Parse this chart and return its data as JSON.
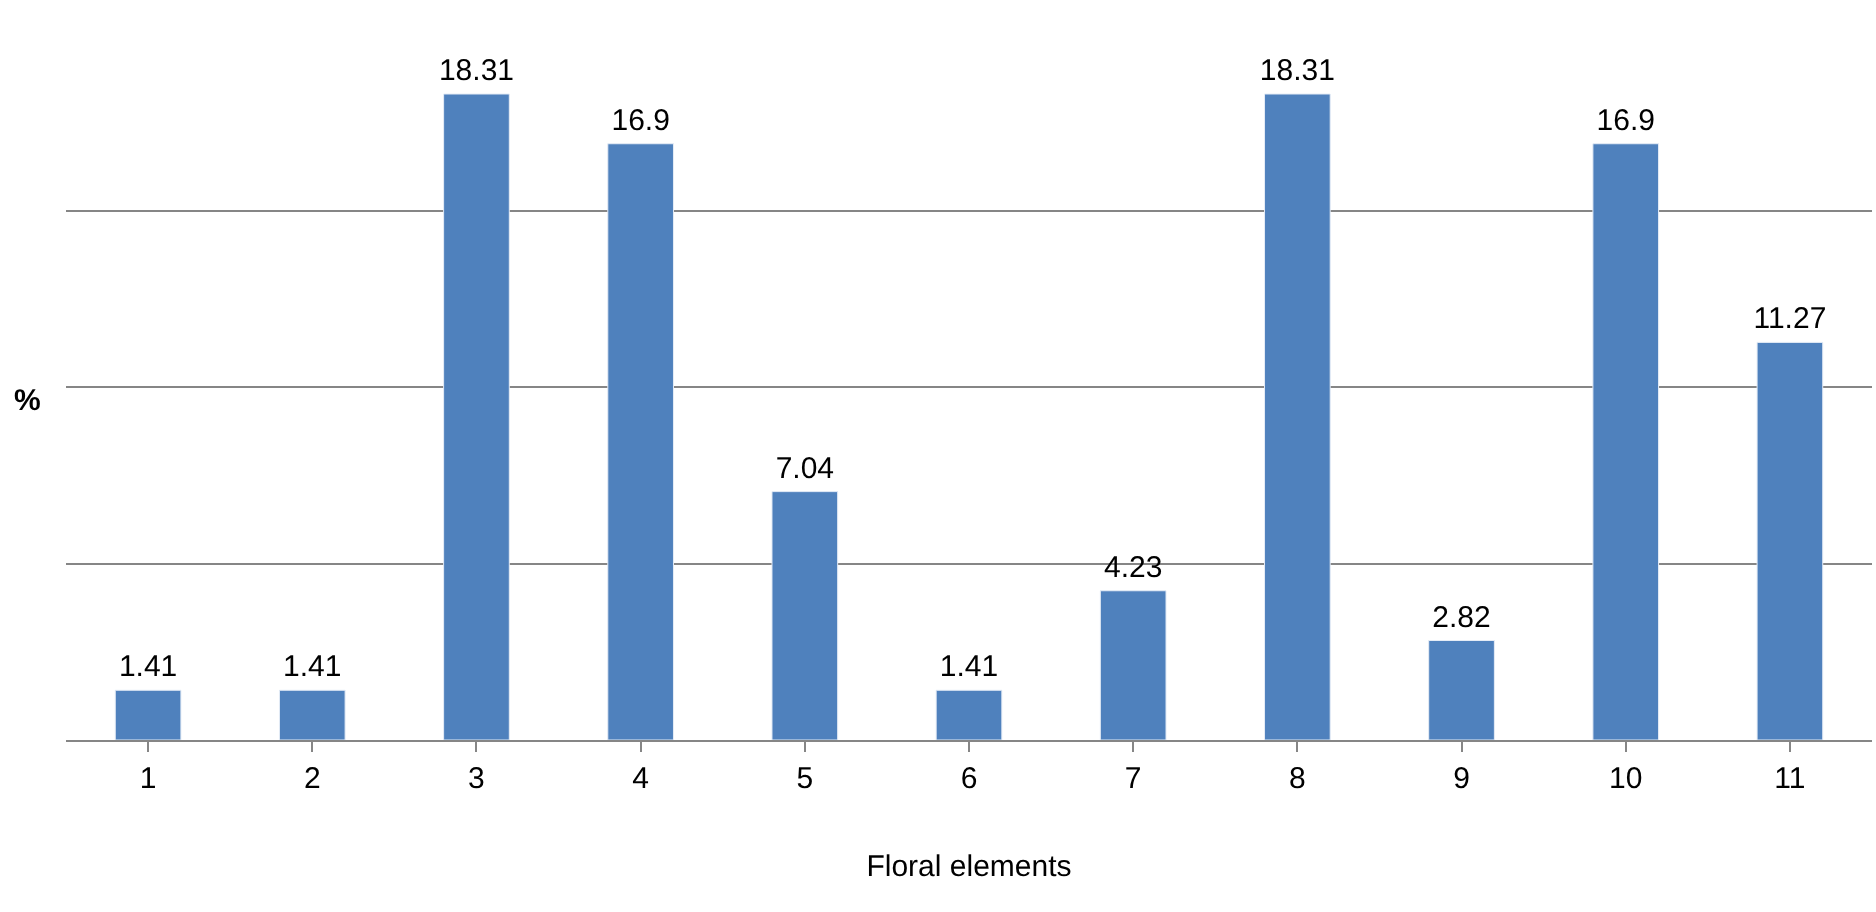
{
  "chart_data": {
    "type": "bar",
    "xlabel": "Floral elements",
    "ylabel": "%",
    "categories": [
      "1",
      "2",
      "3",
      "4",
      "5",
      "6",
      "7",
      "8",
      "9",
      "10",
      "11"
    ],
    "values": [
      1.41,
      1.41,
      18.31,
      16.9,
      7.04,
      1.41,
      4.23,
      18.31,
      2.82,
      16.9,
      11.27
    ],
    "color": "#4f81bd",
    "data_labels": true,
    "grid": "y",
    "tick_labels": "x"
  }
}
